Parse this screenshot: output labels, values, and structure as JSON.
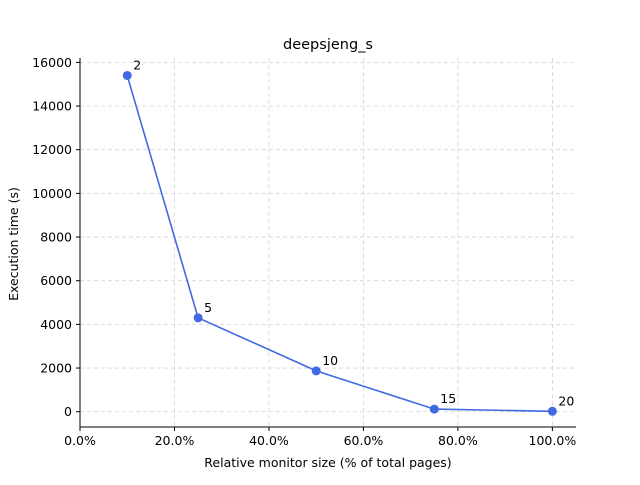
{
  "chart_data": {
    "type": "line",
    "title": "deepsjeng_s",
    "xlabel": "Relative monitor size (% of total pages)",
    "ylabel": "Execution time (s)",
    "xlim": [
      0,
      105
    ],
    "ylim": [
      -700,
      16200
    ],
    "xticks": [
      0,
      20,
      40,
      60,
      80,
      100
    ],
    "xtick_labels": [
      "0.0%",
      "20.0%",
      "40.0%",
      "60.0%",
      "80.0%",
      "100.0%"
    ],
    "yticks": [
      0,
      2000,
      4000,
      6000,
      8000,
      10000,
      12000,
      14000,
      16000
    ],
    "ytick_labels": [
      "0",
      "2000",
      "4000",
      "6000",
      "8000",
      "10000",
      "12000",
      "14000",
      "16000"
    ],
    "grid": true,
    "line_color": "#4169e1",
    "series": [
      {
        "x": [
          10,
          25,
          50,
          75,
          100
        ],
        "y": [
          15400,
          4300,
          1870,
          120,
          20
        ],
        "point_labels": [
          "2",
          "5",
          "10",
          "15",
          "20"
        ]
      }
    ]
  }
}
